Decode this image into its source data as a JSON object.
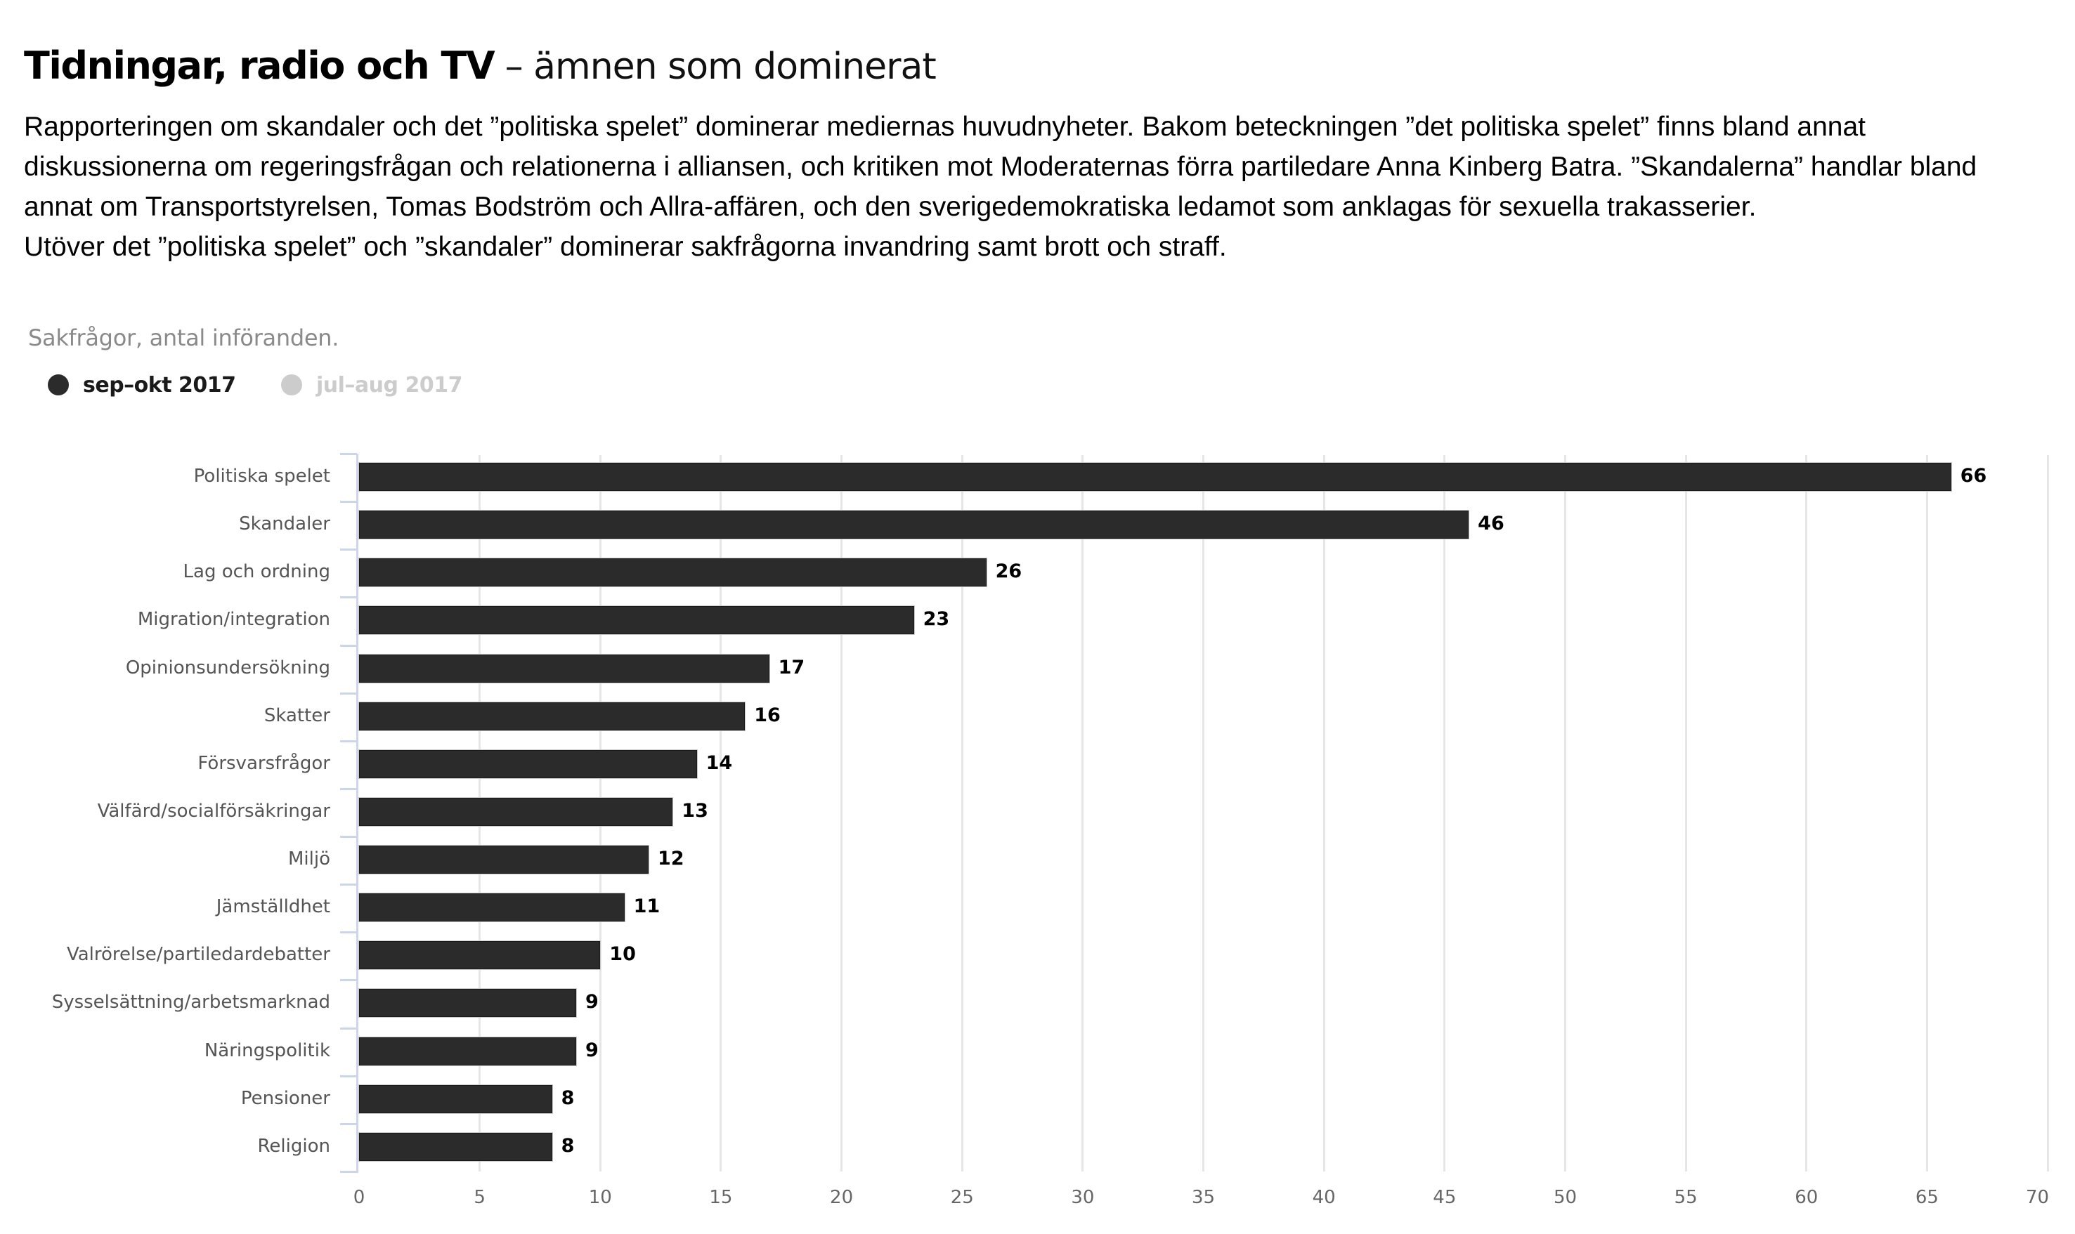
{
  "header": {
    "title_bold": "Tidningar, radio och TV",
    "title_light": " – ämnen som dominerat"
  },
  "intro": {
    "lines": [
      "Rapporteringen om skandaler och det ”politiska spelet” dominerar mediernas huvudnyheter. Bakom beteckningen ”det politiska spelet” finns bland annat",
      "diskussionerna om regeringsfrågan och relationerna i alliansen, och kritiken mot Moderaternas förra partiledare Anna Kinberg Batra. ”Skandalerna” handlar bland",
      "annat om Transportstyrelsen, Tomas Bodström och Allra-affären, och den sverigedemokratiska ledamot som anklagas för sexuella trakasserier.",
      "Utöver det ”politiska spelet” och ”skandaler” dominerar sakfrågorna invandring samt brott och straff."
    ]
  },
  "legend": {
    "items": [
      {
        "label": "sep–okt 2017",
        "color": "#2b2b2b",
        "text_color": "#1a1a1a",
        "active": true
      },
      {
        "label": "jul–aug 2017",
        "color": "#cccccc",
        "text_color": "#cccccc",
        "active": false
      }
    ]
  },
  "colors": {
    "bar": "#2b2b2b",
    "gridline": "#e6e6e6",
    "axis": "#ccd6eb",
    "category_label": "#555555",
    "axis_label": "#666666",
    "subtitle": "#8a8a8a"
  },
  "chart_data": {
    "type": "bar",
    "orientation": "horizontal",
    "title": "Sakfrågor, antal införanden.",
    "xlabel": "",
    "ylabel": "",
    "xlim": [
      0,
      70
    ],
    "x_ticks": [
      0,
      5,
      10,
      15,
      20,
      25,
      30,
      35,
      40,
      45,
      50,
      55,
      60,
      65,
      70
    ],
    "grid": true,
    "legend_position": "top-left",
    "categories": [
      "Politiska spelet",
      "Skandaler",
      "Lag och ordning",
      "Migration/integration",
      "Opinionsundersökning",
      "Skatter",
      "Försvarsfrågor",
      "Välfärd/socialförsäkringar",
      "Miljö",
      "Jämställdhet",
      "Valrörelse/partiledardebatter",
      "Sysselsättning/arbetsmarknad",
      "Näringspolitik",
      "Pensioner",
      "Religion"
    ],
    "series": [
      {
        "name": "sep–okt 2017",
        "visible": true,
        "values": [
          66,
          46,
          26,
          23,
          17,
          16,
          14,
          13,
          12,
          11,
          10,
          9,
          9,
          8,
          8
        ]
      },
      {
        "name": "jul–aug 2017",
        "visible": false,
        "values": []
      }
    ],
    "data_labels": true
  }
}
